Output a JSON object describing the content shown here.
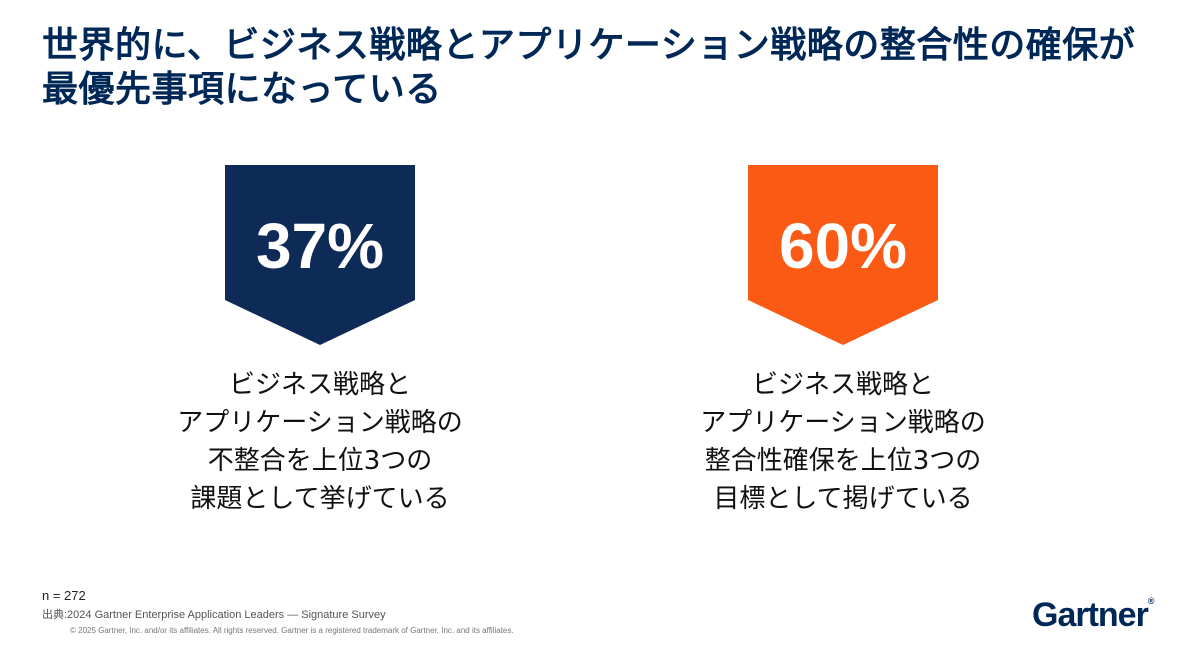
{
  "title": {
    "line1": "世界的に、ビジネス戦略とアプリケーション戦略の整合性の確保が",
    "line2": "最優先事項になっている"
  },
  "stats": [
    {
      "value": "37%",
      "color": "#0E2A56",
      "description": [
        "ビジネス戦略と",
        "アプリケーション戦略の",
        "不整合を上位3つの",
        "課題として挙げている"
      ]
    },
    {
      "value": "60%",
      "color": "#FA5A14",
      "description": [
        "ビジネス戦略と",
        "アプリケーション戦略の",
        "整合性確保を上位3つの",
        "目標として掲げている"
      ]
    }
  ],
  "footer": {
    "sample": "n = 272",
    "source": "出典:2024 Gartner Enterprise Application Leaders — Signature Survey",
    "copyright": "© 2025 Gartner, Inc. and/or its affiliates. All rights reserved. Gartner is a registered trademark of Gartner, Inc. and its affiliates."
  },
  "logo": {
    "text": "Gartner",
    "mark": "®"
  }
}
